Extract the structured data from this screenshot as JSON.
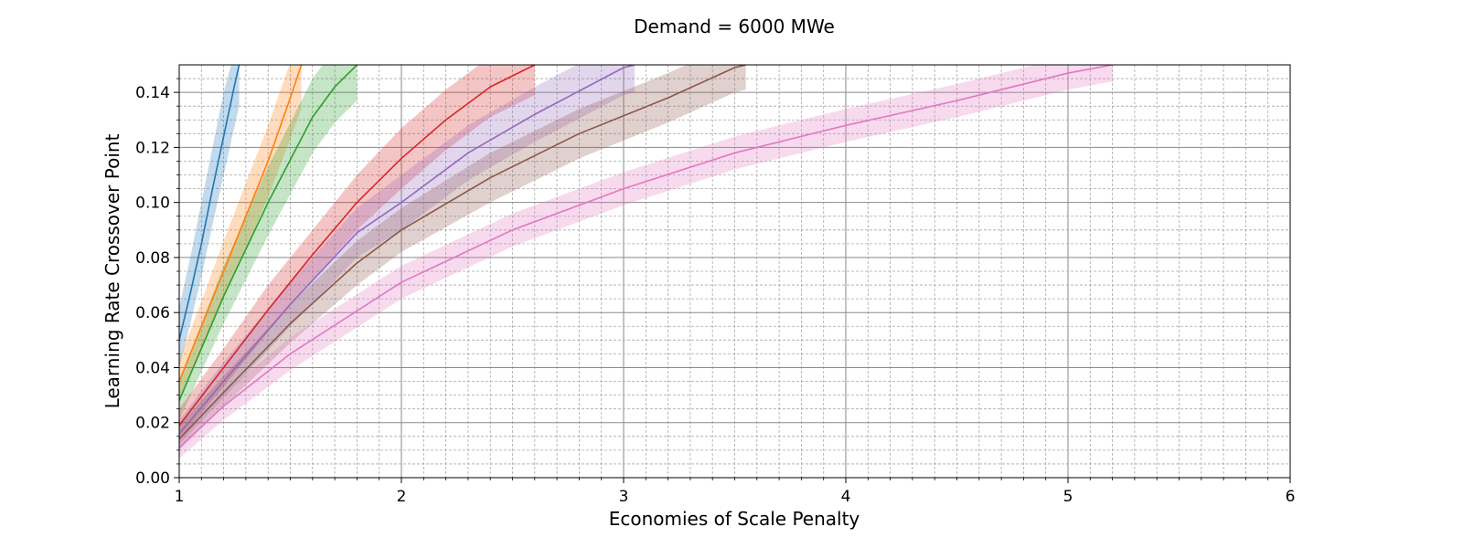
{
  "chart_data": {
    "type": "line",
    "title": "Demand = 6000 MWe",
    "xlabel": "Economies of Scale Penalty",
    "ylabel": "Learning Rate Crossover Point",
    "xlim": [
      1,
      6
    ],
    "ylim": [
      0,
      0.15
    ],
    "x_ticks": [
      1,
      2,
      3,
      4,
      5,
      6
    ],
    "x_tick_labels": [
      "1",
      "2",
      "3",
      "4",
      "5",
      "6"
    ],
    "y_ticks": [
      0,
      0.02,
      0.04,
      0.06,
      0.08,
      0.1,
      0.12,
      0.14
    ],
    "y_tick_labels": [
      "0.00",
      "0.02",
      "0.04",
      "0.06",
      "0.08",
      "0.10",
      "0.12",
      "0.14"
    ],
    "grid": "major solid and minor dashed",
    "legend": "none",
    "series": [
      {
        "color": "#1f77b4",
        "shaded_band": true,
        "points": [
          [
            1.0,
            0.05
          ],
          [
            1.05,
            0.067
          ],
          [
            1.1,
            0.085
          ],
          [
            1.15,
            0.105
          ],
          [
            1.2,
            0.124
          ],
          [
            1.25,
            0.143
          ],
          [
            1.27,
            0.15
          ]
        ],
        "band_lower": [
          0.04,
          0.056,
          0.073,
          0.092,
          0.11,
          0.128,
          0.135
        ],
        "band_upper": [
          0.062,
          0.08,
          0.1,
          0.12,
          0.14,
          0.155,
          0.158
        ]
      },
      {
        "color": "#ff7f0e",
        "shaded_band": true,
        "points": [
          [
            1.0,
            0.035
          ],
          [
            1.1,
            0.055
          ],
          [
            1.2,
            0.075
          ],
          [
            1.3,
            0.095
          ],
          [
            1.4,
            0.115
          ],
          [
            1.5,
            0.138
          ],
          [
            1.55,
            0.15
          ]
        ],
        "band_lower": [
          0.028,
          0.046,
          0.065,
          0.083,
          0.102,
          0.123,
          0.134
        ],
        "band_upper": [
          0.043,
          0.064,
          0.086,
          0.107,
          0.128,
          0.151,
          0.163
        ]
      },
      {
        "color": "#2ca02c",
        "shaded_band": true,
        "points": [
          [
            1.0,
            0.028
          ],
          [
            1.2,
            0.066
          ],
          [
            1.4,
            0.1
          ],
          [
            1.6,
            0.131
          ],
          [
            1.7,
            0.142
          ],
          [
            1.8,
            0.15
          ]
        ],
        "band_lower": [
          0.021,
          0.056,
          0.088,
          0.118,
          0.129,
          0.137
        ],
        "band_upper": [
          0.035,
          0.077,
          0.113,
          0.145,
          0.156,
          0.163
        ]
      },
      {
        "color": "#d62728",
        "shaded_band": true,
        "points": [
          [
            1.0,
            0.019
          ],
          [
            1.2,
            0.04
          ],
          [
            1.4,
            0.061
          ],
          [
            1.6,
            0.081
          ],
          [
            1.8,
            0.1
          ],
          [
            2.0,
            0.116
          ],
          [
            2.2,
            0.13
          ],
          [
            2.4,
            0.142
          ],
          [
            2.6,
            0.15
          ]
        ],
        "band_lower": [
          0.014,
          0.033,
          0.053,
          0.072,
          0.09,
          0.105,
          0.119,
          0.131,
          0.139
        ],
        "band_upper": [
          0.025,
          0.047,
          0.07,
          0.09,
          0.11,
          0.127,
          0.141,
          0.153,
          0.16
        ]
      },
      {
        "color": "#9467bd",
        "shaded_band": true,
        "points": [
          [
            1.0,
            0.016
          ],
          [
            1.2,
            0.035
          ],
          [
            1.5,
            0.063
          ],
          [
            1.8,
            0.089
          ],
          [
            2.0,
            0.1
          ],
          [
            2.3,
            0.118
          ],
          [
            2.6,
            0.132
          ],
          [
            3.0,
            0.149
          ],
          [
            3.05,
            0.15
          ]
        ],
        "band_lower": [
          0.012,
          0.029,
          0.055,
          0.08,
          0.09,
          0.108,
          0.122,
          0.139,
          0.14
        ],
        "band_upper": [
          0.021,
          0.042,
          0.071,
          0.098,
          0.11,
          0.128,
          0.142,
          0.159,
          0.16
        ]
      },
      {
        "color": "#8c564b",
        "shaded_band": true,
        "points": [
          [
            1.0,
            0.014
          ],
          [
            1.2,
            0.031
          ],
          [
            1.5,
            0.056
          ],
          [
            1.8,
            0.078
          ],
          [
            2.0,
            0.09
          ],
          [
            2.4,
            0.109
          ],
          [
            2.8,
            0.125
          ],
          [
            3.2,
            0.138
          ],
          [
            3.5,
            0.149
          ],
          [
            3.55,
            0.15
          ]
        ],
        "band_lower": [
          0.01,
          0.026,
          0.049,
          0.07,
          0.082,
          0.1,
          0.116,
          0.129,
          0.14,
          0.141
        ],
        "band_upper": [
          0.019,
          0.037,
          0.063,
          0.086,
          0.098,
          0.118,
          0.134,
          0.147,
          0.158,
          0.159
        ]
      },
      {
        "color": "#e377c2",
        "shaded_band": true,
        "points": [
          [
            1.0,
            0.011
          ],
          [
            1.2,
            0.026
          ],
          [
            1.5,
            0.045
          ],
          [
            2.0,
            0.071
          ],
          [
            2.5,
            0.09
          ],
          [
            3.0,
            0.105
          ],
          [
            3.5,
            0.118
          ],
          [
            4.0,
            0.128
          ],
          [
            4.5,
            0.137
          ],
          [
            5.0,
            0.147
          ],
          [
            5.2,
            0.15
          ]
        ],
        "band_lower": [
          0.007,
          0.021,
          0.039,
          0.065,
          0.084,
          0.099,
          0.112,
          0.122,
          0.131,
          0.141,
          0.144
        ],
        "band_upper": [
          0.015,
          0.031,
          0.051,
          0.077,
          0.096,
          0.111,
          0.124,
          0.134,
          0.143,
          0.153,
          0.156
        ]
      }
    ]
  }
}
